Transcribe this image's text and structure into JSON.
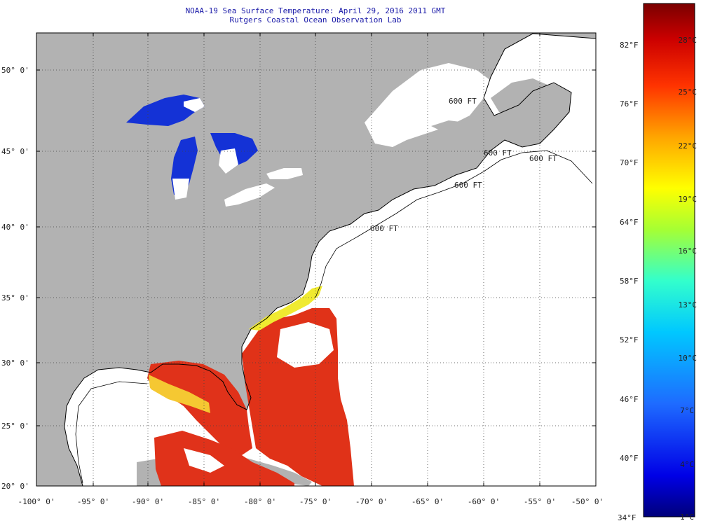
{
  "title": {
    "line1": "NOAA-19 Sea Surface Temperature:  April 29, 2016 2011 GMT",
    "line2": "Rutgers Coastal Ocean Observation Lab"
  },
  "map": {
    "lat_labels": [
      "50° 0'",
      "45° 0'",
      "40° 0'",
      "35° 0'",
      "30° 0'",
      "25° 0'",
      "20° 0'"
    ],
    "lon_labels": [
      "-100° 0'",
      "-95° 0'",
      "-90° 0'",
      "-85° 0'",
      "-80° 0'",
      "-75° 0'",
      "-70° 0'",
      "-65° 0'",
      "-60° 0'",
      "-55° 0'",
      "-50° 0'"
    ],
    "lon_range": [
      -100,
      -50
    ],
    "lat_range": [
      20,
      52.5
    ],
    "isobath_labels": [
      "600 FT",
      "600 FT",
      "600 FT",
      "600 FT",
      "600 FT"
    ],
    "colors": {
      "land": "#b2b2b2",
      "no_data": "#ffffff",
      "lakes": "#1432d6",
      "warm": "#e63015",
      "coastline": "#000000"
    }
  },
  "colorbar": {
    "fahrenheit_labels": [
      "82°F",
      "76°F",
      "70°F",
      "64°F",
      "58°F",
      "52°F",
      "46°F",
      "40°F",
      "34°F"
    ],
    "celsius_labels": [
      "28°C",
      "25°C",
      "22°C",
      "19°C",
      "16°C",
      "13°C",
      "10°C",
      "7°C",
      "4°C",
      "1°C"
    ],
    "range_f": [
      34,
      86
    ],
    "colors": [
      "#00007a",
      "#0000ff",
      "#2a7bff",
      "#00ccff",
      "#33ffcc",
      "#a6ff33",
      "#ffff00",
      "#ffa500",
      "#ff3300",
      "#c80000",
      "#7a0000"
    ]
  }
}
